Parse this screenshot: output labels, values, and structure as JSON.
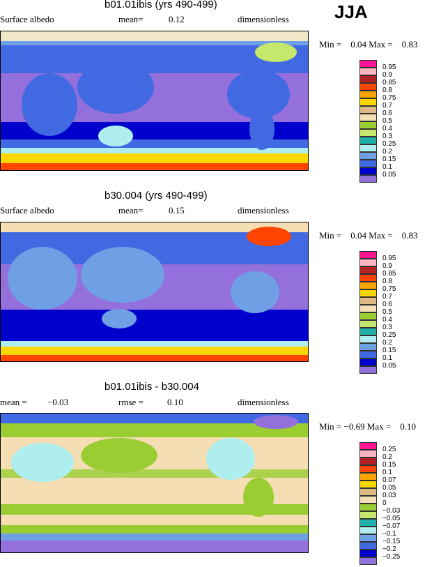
{
  "season": "JJA",
  "panels": [
    {
      "title": "b01.01ibis (yrs 490-499)",
      "left_label": "Surface albedo",
      "mid_label": "mean=",
      "mid_value": "0.12",
      "right_label": "dimensionless",
      "min_label": "Min =",
      "min_value": "0.04",
      "max_label": "Max =",
      "max_value": "0.83",
      "legend": {
        "labels": [
          "0.95",
          "0.9",
          "0.85",
          "0.8",
          "0.75",
          "0.7",
          "0.6",
          "0.5",
          "0.4",
          "0.3",
          "0.25",
          "0.2",
          "0.15",
          "0.1",
          "0.05"
        ],
        "colors": [
          "#ff1493",
          "#ffb6c1",
          "#b22222",
          "#ff4500",
          "#ffa500",
          "#ffd700",
          "#deb887",
          "#f5deb3",
          "#9acd32",
          "#c5e86c",
          "#20b2aa",
          "#afeeee",
          "#6fa0e6",
          "#4169e1",
          "#0000cd",
          "#9370db"
        ]
      }
    },
    {
      "title": "b30.004 (yrs 490-499)",
      "left_label": "Surface albedo",
      "mid_label": "mean=",
      "mid_value": "0.15",
      "right_label": "dimensionless",
      "min_label": "Min =",
      "min_value": "0.04",
      "max_label": "Max =",
      "max_value": "0.83",
      "legend": {
        "labels": [
          "0.95",
          "0.9",
          "0.85",
          "0.8",
          "0.75",
          "0.7",
          "0.6",
          "0.5",
          "0.4",
          "0.3",
          "0.25",
          "0.2",
          "0.15",
          "0.1",
          "0.05"
        ],
        "colors": [
          "#ff1493",
          "#ffb6c1",
          "#b22222",
          "#ff4500",
          "#ffa500",
          "#ffd700",
          "#deb887",
          "#f5deb3",
          "#9acd32",
          "#c5e86c",
          "#20b2aa",
          "#afeeee",
          "#6fa0e6",
          "#4169e1",
          "#0000cd",
          "#9370db"
        ]
      }
    },
    {
      "title": "b01.01ibis - b30.004",
      "left_label": "mean =",
      "left_value": "−0.03",
      "mid_label": "rmse =",
      "mid_value": "0.10",
      "right_label": "dimensionless",
      "min_label": "Min =",
      "min_value": "−0.69",
      "max_label": "Max =",
      "max_value": "0.10",
      "legend": {
        "labels": [
          "0.25",
          "0.2",
          "0.15",
          "0.1",
          "0.07",
          "0.05",
          "0.03",
          "0",
          "−0.03",
          "−0.05",
          "−0.07",
          "−0.1",
          "−0.15",
          "−0.2",
          "−0.25"
        ],
        "colors": [
          "#ff1493",
          "#ffb6c1",
          "#b22222",
          "#ff4500",
          "#ffa500",
          "#ffd700",
          "#deb887",
          "#f5deb3",
          "#9acd32",
          "#c5e86c",
          "#20b2aa",
          "#afeeee",
          "#6fa0e6",
          "#4169e1",
          "#0000cd",
          "#9370db"
        ]
      }
    }
  ]
}
